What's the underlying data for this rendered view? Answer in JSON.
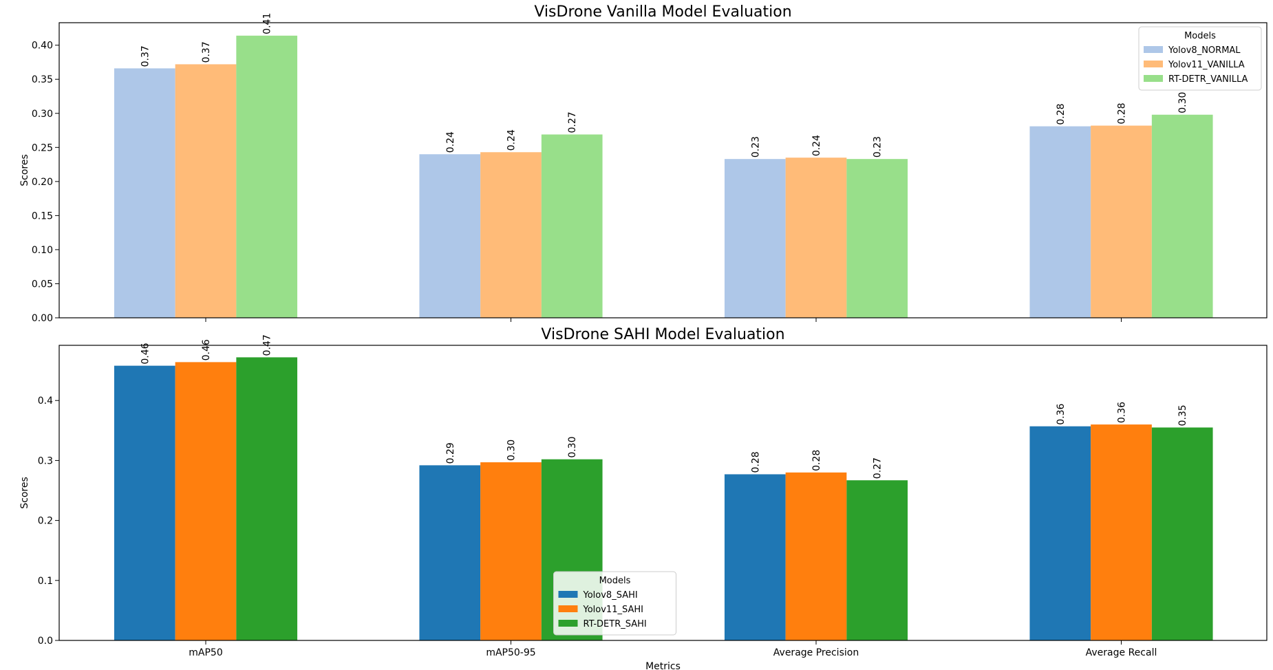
{
  "chart_data": [
    {
      "type": "bar",
      "title": "VisDrone Vanilla Model Evaluation",
      "xlabel": "",
      "ylabel": "Scores",
      "categories": [
        "mAP50",
        "mAP50-95",
        "Average Precision",
        "Average Recall"
      ],
      "show_category_labels": false,
      "ylim": [
        0,
        0.433
      ],
      "yticks": [
        0.0,
        0.05,
        0.1,
        0.15,
        0.2,
        0.25,
        0.3,
        0.35,
        0.4
      ],
      "ytick_labels": [
        "0.00",
        "0.05",
        "0.10",
        "0.15",
        "0.20",
        "0.25",
        "0.30",
        "0.35",
        "0.40"
      ],
      "grid": false,
      "legend": {
        "title": "Models",
        "placement": "top-right"
      },
      "series": [
        {
          "name": "Yolov8_NORMAL",
          "color": "#aec7e8",
          "values": [
            0.366,
            0.24,
            0.233,
            0.281
          ],
          "labels": [
            "0.37",
            "0.24",
            "0.23",
            "0.28"
          ]
        },
        {
          "name": "Yolov11_VANILLA",
          "color": "#ffbb78",
          "values": [
            0.372,
            0.243,
            0.235,
            0.282
          ],
          "labels": [
            "0.37",
            "0.24",
            "0.24",
            "0.28"
          ]
        },
        {
          "name": "RT-DETR_VANILLA",
          "color": "#98df8a",
          "values": [
            0.414,
            0.269,
            0.233,
            0.298
          ],
          "labels": [
            "0.41",
            "0.27",
            "0.23",
            "0.30"
          ]
        }
      ]
    },
    {
      "type": "bar",
      "title": "VisDrone SAHI Model Evaluation",
      "xlabel": "Metrics",
      "ylabel": "Scores",
      "categories": [
        "mAP50",
        "mAP50-95",
        "Average Precision",
        "Average Recall"
      ],
      "show_category_labels": true,
      "ylim": [
        0,
        0.492
      ],
      "yticks": [
        0.0,
        0.1,
        0.2,
        0.3,
        0.4
      ],
      "ytick_labels": [
        "0.0",
        "0.1",
        "0.2",
        "0.3",
        "0.4"
      ],
      "grid": false,
      "legend": {
        "title": "Models",
        "placement": "bottom-center"
      },
      "series": [
        {
          "name": "Yolov8_SAHI",
          "color": "#1f77b4",
          "values": [
            0.458,
            0.292,
            0.277,
            0.357
          ],
          "labels": [
            "0.46",
            "0.29",
            "0.28",
            "0.36"
          ]
        },
        {
          "name": "Yolov11_SAHI",
          "color": "#ff7f0e",
          "values": [
            0.464,
            0.297,
            0.28,
            0.36
          ],
          "labels": [
            "0.46",
            "0.30",
            "0.28",
            "0.36"
          ]
        },
        {
          "name": "RT-DETR_SAHI",
          "color": "#2ca02c",
          "values": [
            0.472,
            0.302,
            0.267,
            0.355
          ],
          "labels": [
            "0.47",
            "0.30",
            "0.27",
            "0.35"
          ]
        }
      ]
    }
  ]
}
